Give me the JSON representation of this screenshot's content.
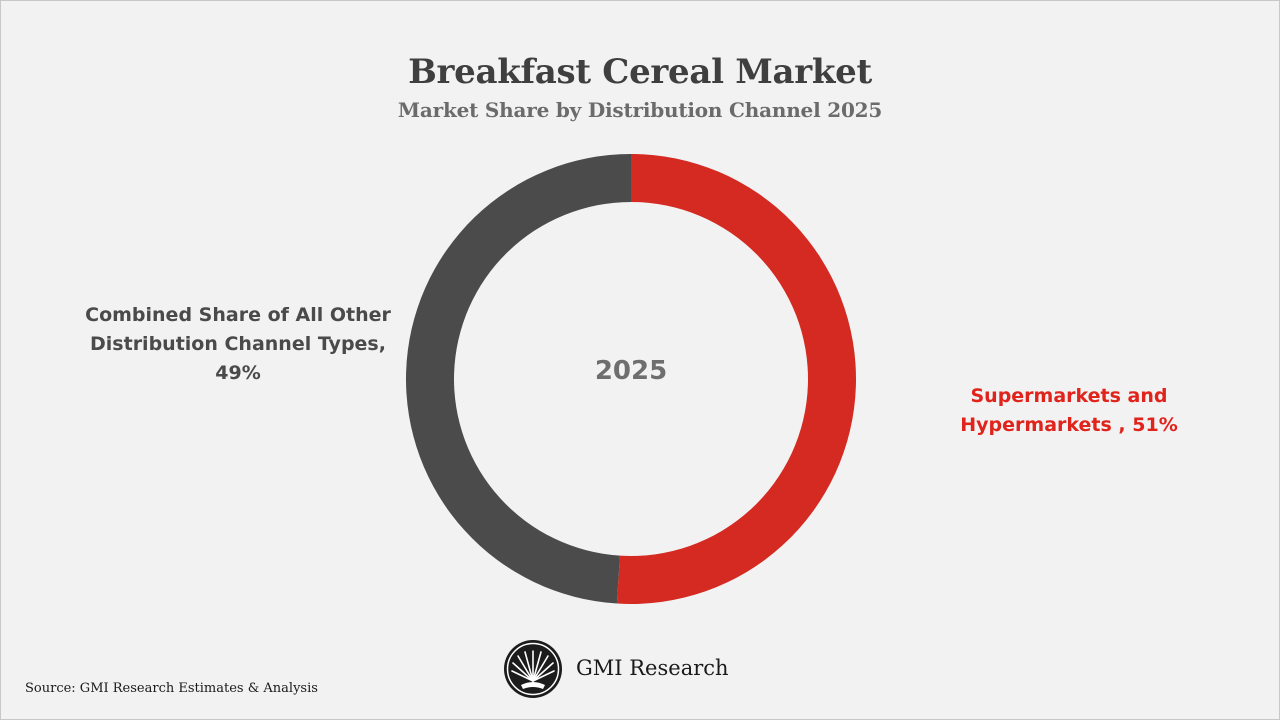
{
  "chart_data": {
    "type": "pie",
    "title": "Breakfast Cereal Market",
    "subtitle": "Market Share by Distribution Channel 2025",
    "center_text": "2025",
    "slices": [
      {
        "name": "Supermarkets and Hypermarkets",
        "value": 51,
        "color": "#d42a22",
        "label_lines": [
          "Supermarkets and",
          "Hypermarkets , 51%"
        ]
      },
      {
        "name": "Combined Share of All Other Distribution Channel Types",
        "value": 49,
        "color": "#4b4b4b",
        "label_lines": [
          "Combined Share of All Other",
          "Distribution Channel Types,",
          "49%"
        ]
      }
    ]
  },
  "colors": {
    "background": "#f2f2f2",
    "accent_red": "#e0231b",
    "slice_dark": "#4b4b4b"
  },
  "brand": {
    "logo_text": "GMI Research",
    "logo_icon": "shell-fan-icon"
  },
  "footer": {
    "source": "Source: GMI Research Estimates & Analysis"
  }
}
